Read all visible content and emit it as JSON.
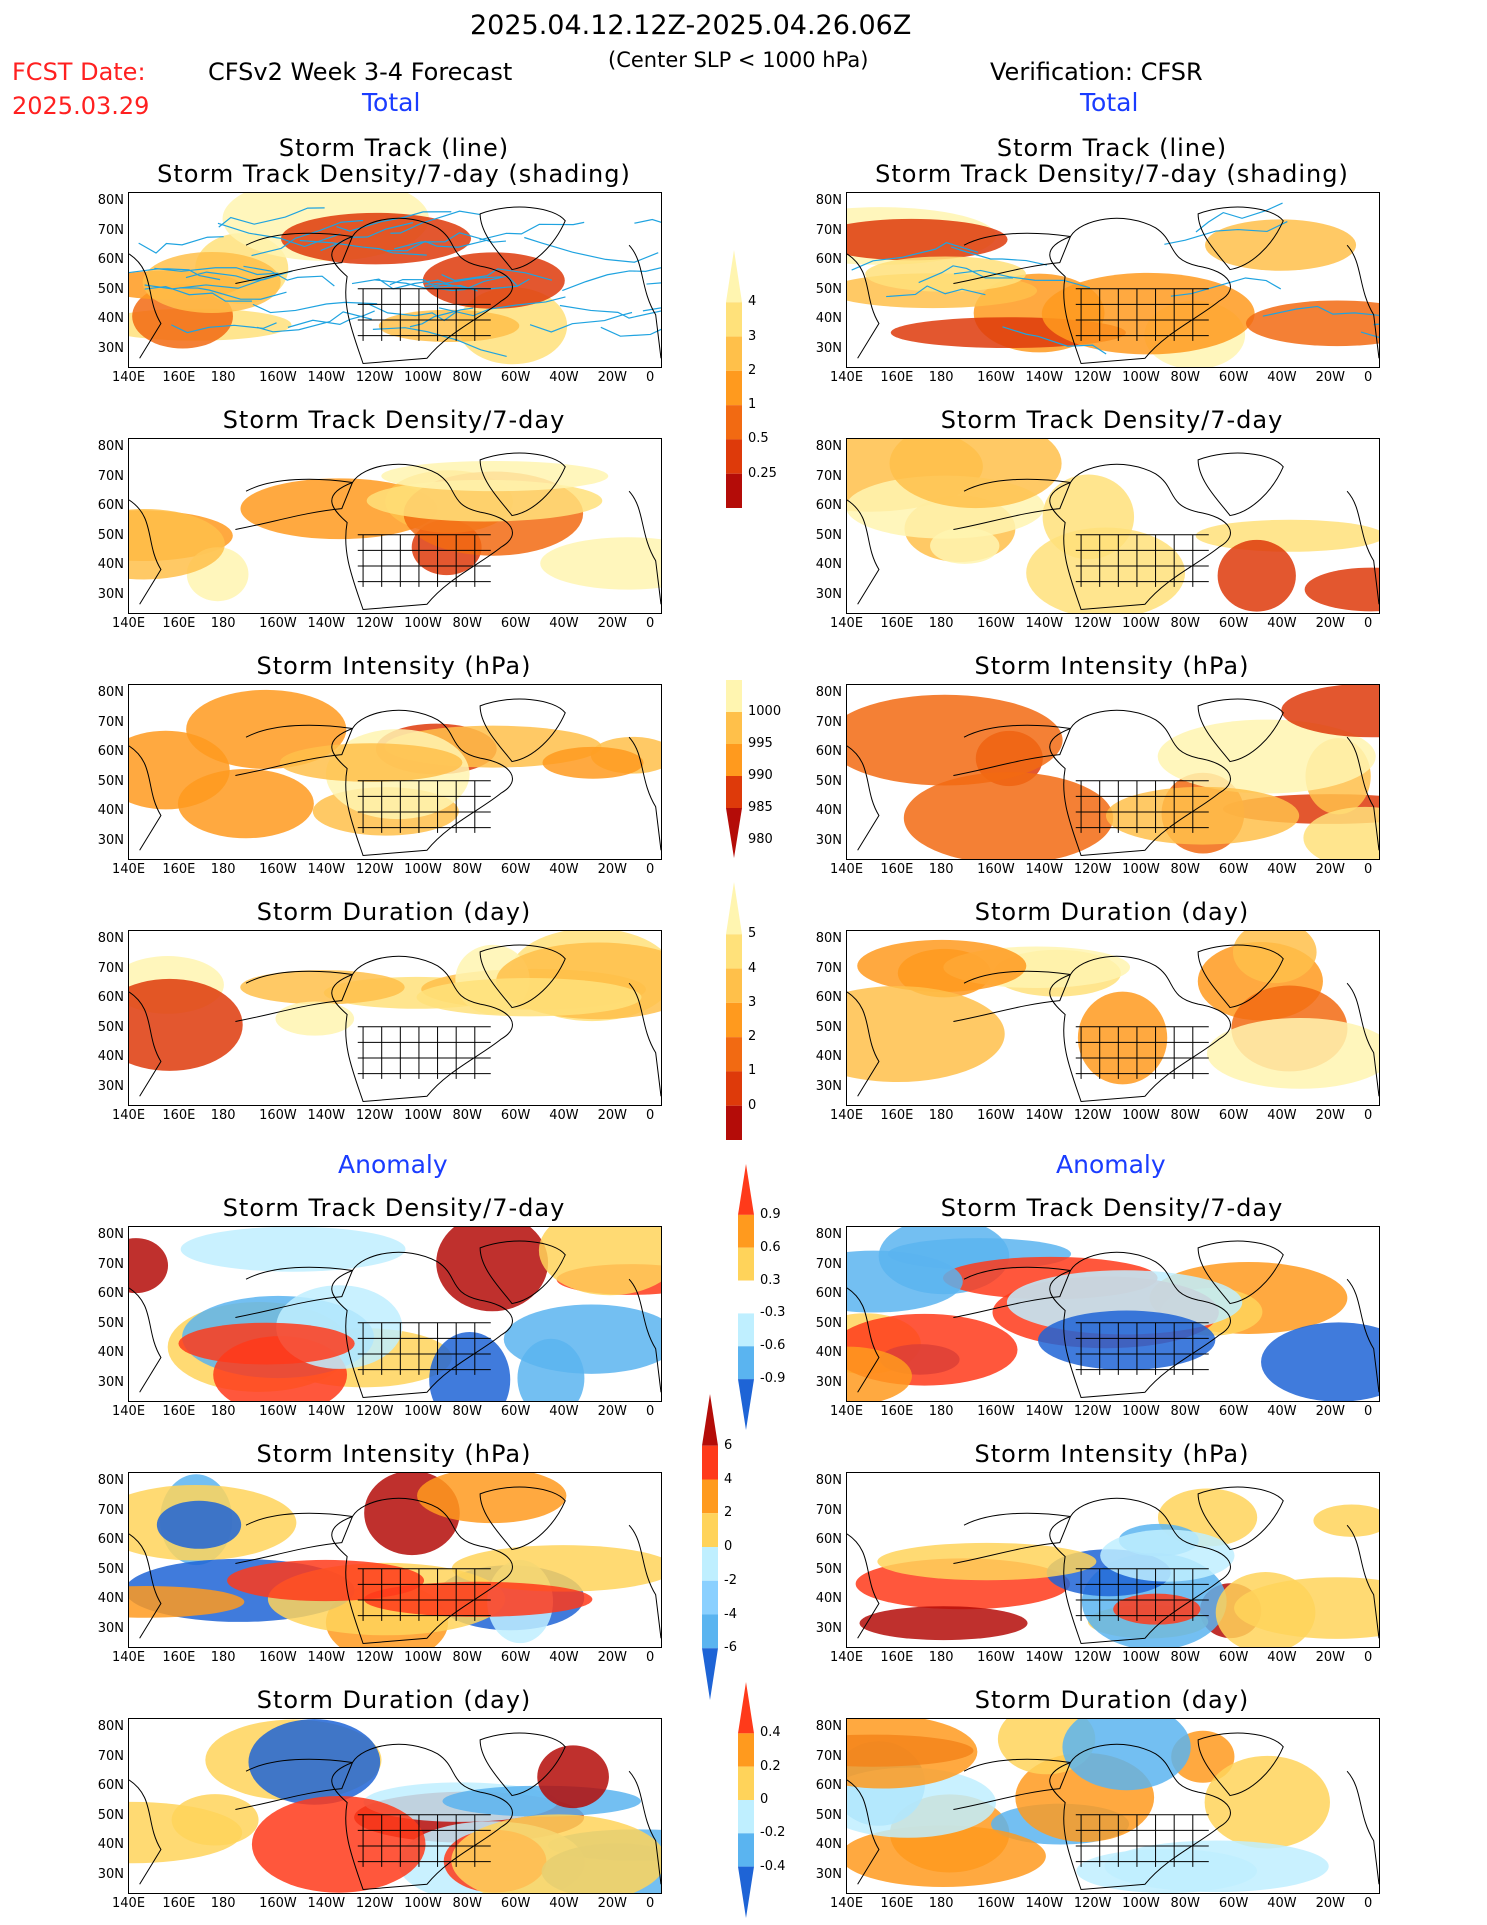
{
  "header": {
    "date_range": "2025.04.12.12Z-2025.04.26.06Z",
    "fcst_label": "FCST Date:",
    "fcst_date": "2025.03.29",
    "forecast_title": "CFSv2 Week 3-4 Forecast",
    "criterion": "(Center SLP < 1000 hPa)",
    "verification": "Verification: CFSR"
  },
  "sections": {
    "total": "Total",
    "anomaly": "Anomaly"
  },
  "panel_titles": {
    "track_line": "Storm Track (line)",
    "track_density_shading": "Storm Track Density/7-day (shading)",
    "track_density": "Storm Track Density/7-day",
    "intensity": "Storm Intensity (hPa)",
    "duration": "Storm Duration (day)"
  },
  "axes": {
    "lat_labels": [
      "80N",
      "70N",
      "60N",
      "50N",
      "40N",
      "30N"
    ],
    "lon_labels": [
      "140E",
      "160E",
      "180",
      "160W",
      "140W",
      "120W",
      "100W",
      "80W",
      "60W",
      "40W",
      "20W",
      "0"
    ]
  },
  "colorbars": {
    "density": {
      "labels": [
        "0.25",
        "0.5",
        "1",
        "2",
        "3",
        "4"
      ],
      "colors": [
        "#fff5b0",
        "#ffe17a",
        "#ffc04a",
        "#ff9a1e",
        "#f26a12",
        "#de3a0a",
        "#b40c08"
      ]
    },
    "intensity": {
      "labels": [
        "1000",
        "995",
        "990",
        "985",
        "980"
      ],
      "colors": [
        "#fff5b0",
        "#ffc04a",
        "#ff9a1e",
        "#de3a0a",
        "#b40c08"
      ]
    },
    "duration": {
      "labels": [
        "0",
        "1",
        "2",
        "3",
        "4",
        "5"
      ],
      "colors": [
        "#fff5b0",
        "#ffe17a",
        "#ffc04a",
        "#ff9a1e",
        "#f26a12",
        "#de3a0a",
        "#b40c08"
      ]
    },
    "anom_density": {
      "labels": [
        "0.9",
        "0.6",
        "0.3",
        "-0.3",
        "-0.6",
        "-0.9"
      ],
      "colors": [
        "#ff3a1a",
        "#ff9a1e",
        "#ffd35a",
        "#ffffff",
        "#bfefff",
        "#5ab4f0",
        "#1e64d6"
      ]
    },
    "anom_intensity": {
      "labels": [
        "6",
        "4",
        "2",
        "0",
        "-2",
        "-4",
        "-6"
      ],
      "colors": [
        "#b40c08",
        "#ff3a1a",
        "#ff9a1e",
        "#ffd35a",
        "#bfefff",
        "#8ad0ff",
        "#5ab4f0",
        "#1e64d6"
      ]
    },
    "anom_duration": {
      "labels": [
        "0.4",
        "0.2",
        "0",
        "-0.2",
        "-0.4"
      ],
      "colors": [
        "#ff3a1a",
        "#ff9a1e",
        "#ffd35a",
        "#bfefff",
        "#5ab4f0",
        "#1e64d6"
      ]
    }
  }
}
